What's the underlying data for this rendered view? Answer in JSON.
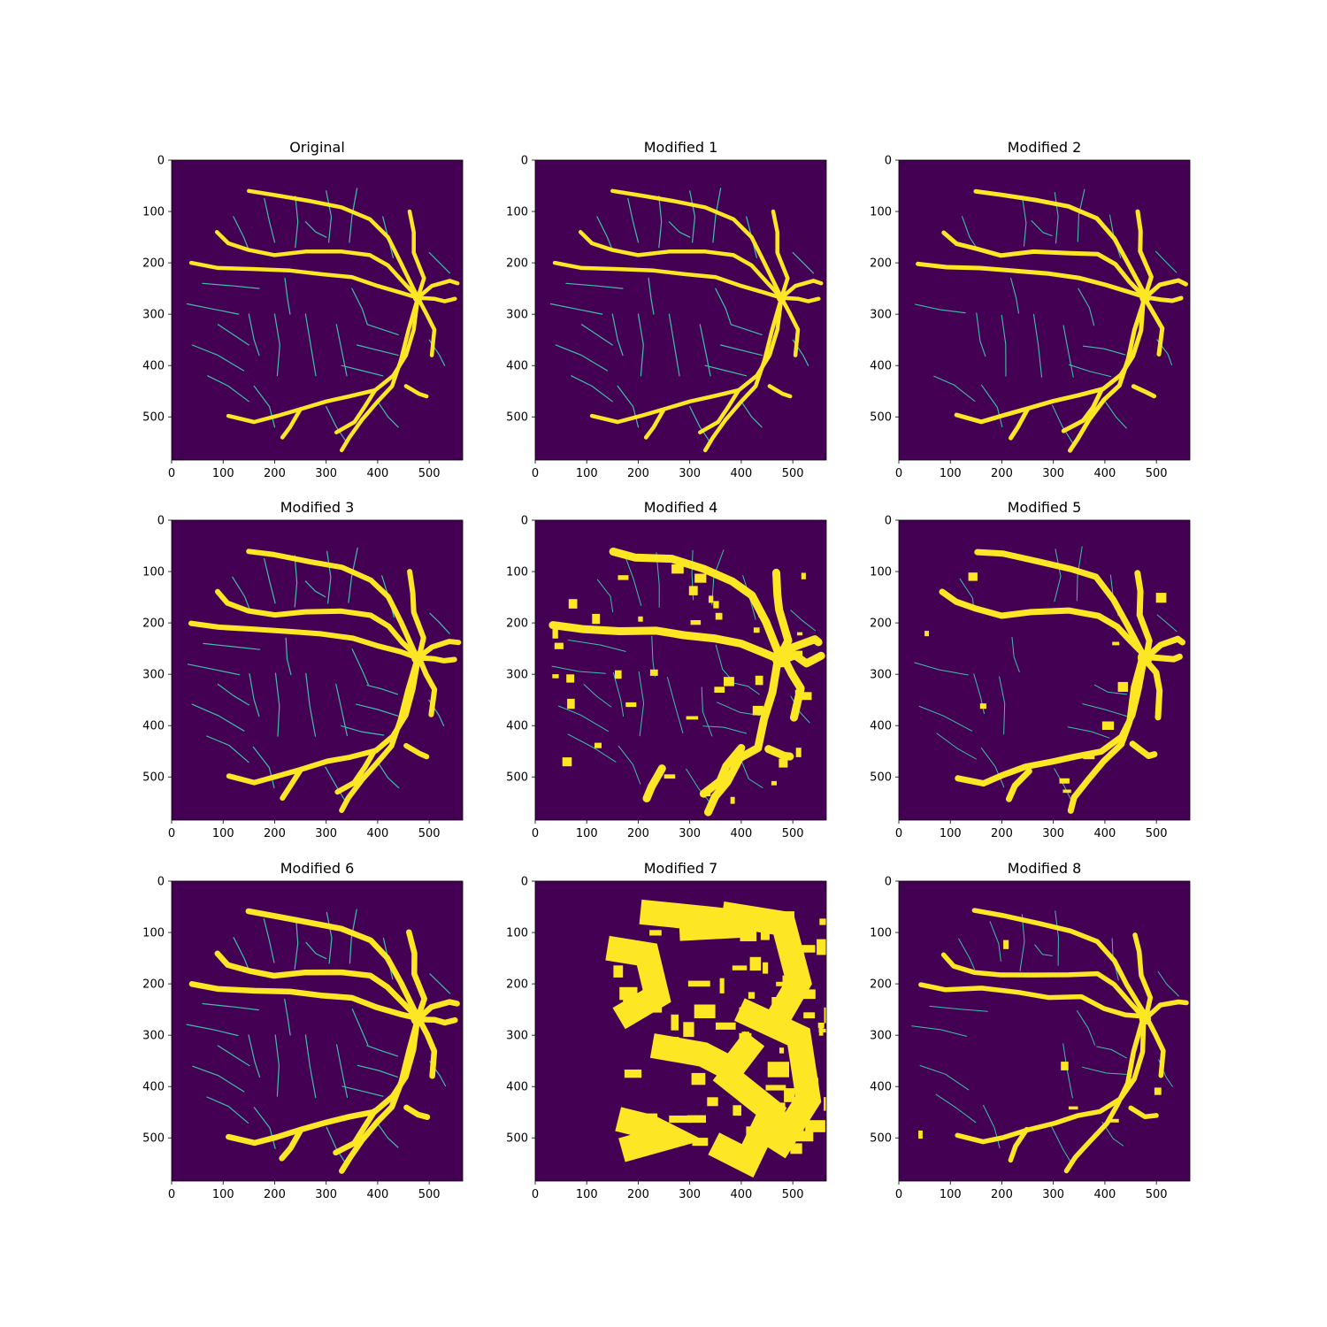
{
  "figure": {
    "colors": {
      "background": "#440154",
      "thin_vessel": "#3fbfa8",
      "thick_vessel": "#fde725",
      "frame": "#000000"
    }
  },
  "chart_data": [
    {
      "type": "heatmap",
      "title": "Original",
      "colormap": "viridis",
      "xlim": [
        0,
        565
      ],
      "ylim": [
        584,
        0
      ],
      "xticks": [
        "0",
        "100",
        "200",
        "300",
        "400",
        "500"
      ],
      "yticks": [
        "0",
        "100",
        "200",
        "300",
        "400",
        "500"
      ],
      "grid": false,
      "legend": null
    },
    {
      "type": "heatmap",
      "title": "Modified 1",
      "colormap": "viridis",
      "xlim": [
        0,
        565
      ],
      "ylim": [
        584,
        0
      ],
      "xticks": [
        "0",
        "100",
        "200",
        "300",
        "400",
        "500"
      ],
      "yticks": [
        "0",
        "100",
        "200",
        "300",
        "400",
        "500"
      ],
      "grid": false,
      "legend": null
    },
    {
      "type": "heatmap",
      "title": "Modified 2",
      "colormap": "viridis",
      "xlim": [
        0,
        565
      ],
      "ylim": [
        584,
        0
      ],
      "xticks": [
        "0",
        "100",
        "200",
        "300",
        "400",
        "500"
      ],
      "yticks": [
        "0",
        "100",
        "200",
        "300",
        "400",
        "500"
      ],
      "grid": false,
      "legend": null
    },
    {
      "type": "heatmap",
      "title": "Modified 3",
      "colormap": "viridis",
      "xlim": [
        0,
        565
      ],
      "ylim": [
        584,
        0
      ],
      "xticks": [
        "0",
        "100",
        "200",
        "300",
        "400",
        "500"
      ],
      "yticks": [
        "0",
        "100",
        "200",
        "300",
        "400",
        "500"
      ],
      "grid": false,
      "legend": null
    },
    {
      "type": "heatmap",
      "title": "Modified 4",
      "colormap": "viridis",
      "xlim": [
        0,
        565
      ],
      "ylim": [
        584,
        0
      ],
      "xticks": [
        "0",
        "100",
        "200",
        "300",
        "400",
        "500"
      ],
      "yticks": [
        "0",
        "100",
        "200",
        "300",
        "400",
        "500"
      ],
      "grid": false,
      "legend": null
    },
    {
      "type": "heatmap",
      "title": "Modified 5",
      "colormap": "viridis",
      "xlim": [
        0,
        565
      ],
      "ylim": [
        584,
        0
      ],
      "xticks": [
        "0",
        "100",
        "200",
        "300",
        "400",
        "500"
      ],
      "yticks": [
        "0",
        "100",
        "200",
        "300",
        "400",
        "500"
      ],
      "grid": false,
      "legend": null
    },
    {
      "type": "heatmap",
      "title": "Modified 6",
      "colormap": "viridis",
      "xlim": [
        0,
        565
      ],
      "ylim": [
        584,
        0
      ],
      "xticks": [
        "0",
        "100",
        "200",
        "300",
        "400",
        "500"
      ],
      "yticks": [
        "0",
        "100",
        "200",
        "300",
        "400",
        "500"
      ],
      "grid": false,
      "legend": null
    },
    {
      "type": "heatmap",
      "title": "Modified 7",
      "colormap": "viridis",
      "xlim": [
        0,
        565
      ],
      "ylim": [
        584,
        0
      ],
      "xticks": [
        "0",
        "100",
        "200",
        "300",
        "400",
        "500"
      ],
      "yticks": [
        "0",
        "100",
        "200",
        "300",
        "400",
        "500"
      ],
      "grid": false,
      "legend": null
    },
    {
      "type": "heatmap",
      "title": "Modified 8",
      "colormap": "viridis",
      "xlim": [
        0,
        565
      ],
      "ylim": [
        584,
        0
      ],
      "xticks": [
        "0",
        "100",
        "200",
        "300",
        "400",
        "500"
      ],
      "yticks": [
        "0",
        "100",
        "200",
        "300",
        "400",
        "500"
      ],
      "grid": false,
      "legend": null
    }
  ]
}
